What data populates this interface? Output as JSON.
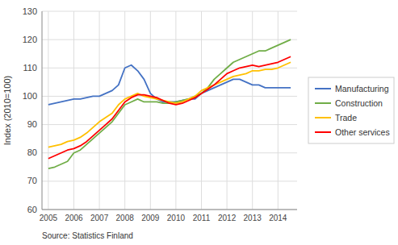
{
  "chart_data": {
    "type": "line",
    "y_label": "Index (2010=100)",
    "annotations": [
      "Source: Statistics Finland"
    ],
    "xlim": [
      2004.75,
      2014.75
    ],
    "xticks": [
      2005,
      2006,
      2007,
      2008,
      2009,
      2010,
      2011,
      2012,
      2013,
      2014
    ],
    "ylim": [
      60,
      130
    ],
    "yticks": [
      60,
      70,
      80,
      90,
      100,
      110,
      120,
      130
    ],
    "grid": true,
    "legend": "right",
    "x": [
      2005.0,
      2005.25,
      2005.5,
      2005.75,
      2006.0,
      2006.25,
      2006.5,
      2006.75,
      2007.0,
      2007.25,
      2007.5,
      2007.75,
      2008.0,
      2008.25,
      2008.5,
      2008.75,
      2009.0,
      2009.25,
      2009.5,
      2009.75,
      2010.0,
      2010.25,
      2010.5,
      2010.75,
      2011.0,
      2011.25,
      2011.5,
      2011.75,
      2012.0,
      2012.25,
      2012.5,
      2012.75,
      2013.0,
      2013.25,
      2013.5,
      2013.75,
      2014.0,
      2014.25,
      2014.5
    ],
    "series": [
      {
        "name": "Manufacturing",
        "color": "#4472C4",
        "values": [
          97,
          97.5,
          98,
          98.5,
          99,
          99,
          99.5,
          100,
          100,
          101,
          102,
          104,
          110,
          111,
          109,
          106,
          101,
          99,
          98,
          98,
          98,
          98.5,
          99,
          99,
          101,
          102,
          103,
          104,
          105,
          106,
          106,
          105,
          104,
          104,
          103,
          103,
          103,
          103,
          103
        ]
      },
      {
        "name": "Construction",
        "color": "#70AD47",
        "values": [
          74.5,
          75,
          76,
          77,
          80,
          81,
          83,
          85,
          87,
          89,
          91,
          94,
          97,
          98,
          99,
          98,
          98,
          98,
          97.5,
          97.5,
          98,
          98.5,
          99,
          100,
          101,
          103,
          106,
          108,
          110,
          112,
          113,
          114,
          115,
          116,
          116,
          117,
          118,
          119,
          120
        ]
      },
      {
        "name": "Trade",
        "color": "#FFC000",
        "values": [
          82,
          82.5,
          83,
          84,
          84.5,
          85.5,
          87,
          89,
          91,
          92.5,
          94,
          97,
          99,
          100,
          101,
          100,
          99.5,
          99,
          98.5,
          98,
          97.5,
          98,
          99,
          100,
          102,
          103,
          104,
          105,
          106,
          107,
          107.5,
          108,
          109,
          109,
          109.5,
          109.5,
          110,
          111,
          112
        ]
      },
      {
        "name": "Other services",
        "color": "#FF0000",
        "values": [
          78,
          79,
          80,
          81,
          81.5,
          82.5,
          84,
          86,
          88,
          90,
          92,
          95,
          98,
          99.5,
          100.5,
          100.5,
          100,
          99.5,
          98.5,
          97.5,
          97,
          97.5,
          98.5,
          99.5,
          101,
          102.5,
          104,
          106,
          108,
          109,
          110,
          110.5,
          111,
          110.5,
          111,
          111.5,
          112,
          113,
          114
        ]
      }
    ]
  }
}
